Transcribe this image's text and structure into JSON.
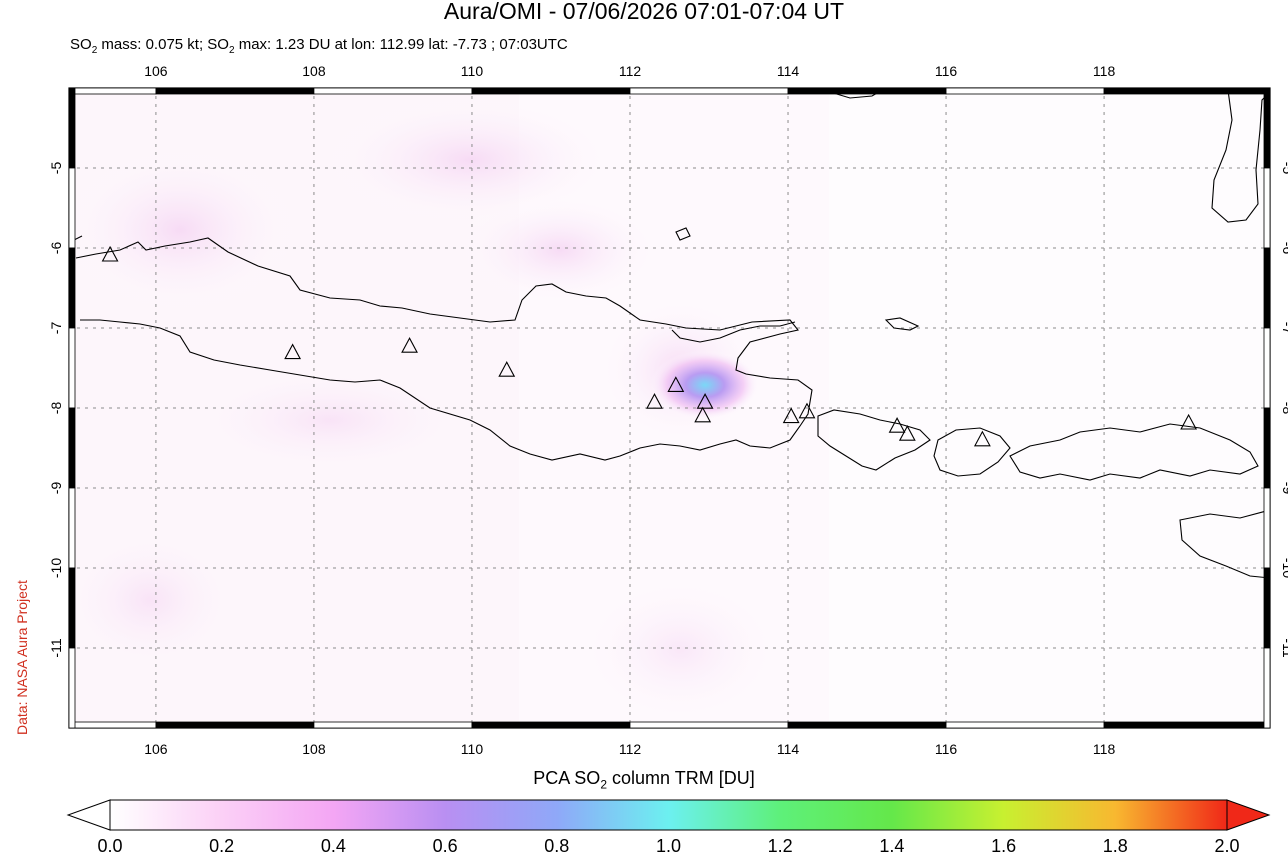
{
  "header": {
    "title": "Aura/OMI - 07/06/2026 07:01-07:04 UT",
    "subtitle_pre": "SO",
    "subtitle_sub": "2",
    "subtitle_mid": " mass: 0.075 kt; SO",
    "subtitle_sub2": "2",
    "subtitle_post": " max: 1.23 DU at lon: 112.99 lat: -7.73 ; 07:03UTC"
  },
  "credit": "Data: NASA Aura Project",
  "map": {
    "lon_ticks": [
      "106",
      "108",
      "110",
      "112",
      "114",
      "116",
      "118"
    ],
    "lat_ticks": [
      "-5",
      "-6",
      "-7",
      "-8",
      "-9",
      "-10",
      "-11"
    ],
    "lon_range": [
      104.9,
      120.1
    ],
    "lat_range": [
      -12.0,
      -4.0
    ],
    "grid": "dotted",
    "volcanoes": [
      {
        "lon": 105.42,
        "lat": -6.1
      },
      {
        "lon": 107.73,
        "lat": -7.32
      },
      {
        "lon": 109.21,
        "lat": -7.24
      },
      {
        "lon": 110.44,
        "lat": -7.54
      },
      {
        "lon": 112.31,
        "lat": -7.94
      },
      {
        "lon": 112.58,
        "lat": -7.73
      },
      {
        "lon": 112.95,
        "lat": -7.94
      },
      {
        "lon": 112.92,
        "lat": -8.11
      },
      {
        "lon": 114.04,
        "lat": -8.12
      },
      {
        "lon": 114.24,
        "lat": -8.06
      },
      {
        "lon": 115.38,
        "lat": -8.24
      },
      {
        "lon": 115.51,
        "lat": -8.34
      },
      {
        "lon": 116.46,
        "lat": -8.41
      },
      {
        "lon": 119.07,
        "lat": -8.2
      }
    ],
    "so2_max": {
      "lon": 112.99,
      "lat": -7.73,
      "value": 1.23
    }
  },
  "colorbar": {
    "title_pre": "PCA SO",
    "title_sub": "2",
    "title_post": " column TRM [DU]",
    "labels": [
      "0.0",
      "0.2",
      "0.4",
      "0.6",
      "0.8",
      "1.0",
      "1.2",
      "1.4",
      "1.6",
      "1.8",
      "2.0"
    ],
    "range": [
      0.0,
      2.0
    ],
    "colors": [
      "#ffffff",
      "#fbd0f6",
      "#f4a6f4",
      "#b98ff2",
      "#8fa8f8",
      "#6cf0f0",
      "#5ef07a",
      "#64e84a",
      "#c8f030",
      "#f8b830",
      "#f02818"
    ]
  }
}
